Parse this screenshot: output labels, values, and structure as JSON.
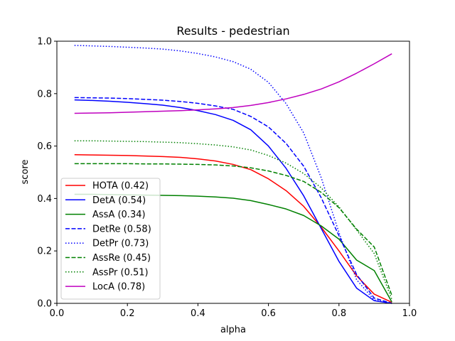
{
  "chart_data": {
    "type": "line",
    "title": "Results - pedestrian",
    "xlabel": "alpha",
    "ylabel": "score",
    "xlim": [
      0.0,
      1.0
    ],
    "ylim": [
      0.0,
      1.0
    ],
    "xticks": [
      "0.0",
      "0.2",
      "0.4",
      "0.6",
      "0.8",
      "1.0"
    ],
    "yticks": [
      "0.0",
      "0.2",
      "0.4",
      "0.6",
      "0.8",
      "1.0"
    ],
    "grid": false,
    "legend_position": "lower-left",
    "x": [
      0.05,
      0.1,
      0.15,
      0.2,
      0.25,
      0.3,
      0.35,
      0.4,
      0.45,
      0.5,
      0.55,
      0.6,
      0.65,
      0.7,
      0.75,
      0.8,
      0.85,
      0.9,
      0.95
    ],
    "series": [
      {
        "name": "HOTA (0.42)",
        "color": "#ff0000",
        "dash": "solid",
        "values": [
          0.567,
          0.566,
          0.565,
          0.564,
          0.562,
          0.56,
          0.557,
          0.551,
          0.543,
          0.53,
          0.51,
          0.475,
          0.43,
          0.37,
          0.29,
          0.2,
          0.105,
          0.035,
          0.004
        ]
      },
      {
        "name": "DetA (0.54)",
        "color": "#0000ff",
        "dash": "solid",
        "values": [
          0.776,
          0.774,
          0.771,
          0.767,
          0.762,
          0.756,
          0.747,
          0.735,
          0.72,
          0.698,
          0.662,
          0.6,
          0.515,
          0.41,
          0.285,
          0.16,
          0.058,
          0.01,
          0.0
        ]
      },
      {
        "name": "AssA (0.34)",
        "color": "#008000",
        "dash": "solid",
        "values": [
          0.416,
          0.416,
          0.415,
          0.414,
          0.413,
          0.412,
          0.411,
          0.409,
          0.406,
          0.401,
          0.392,
          0.377,
          0.36,
          0.335,
          0.295,
          0.245,
          0.165,
          0.125,
          0.005
        ]
      },
      {
        "name": "DetRe (0.58)",
        "color": "#0000ff",
        "dash": "dashed",
        "values": [
          0.785,
          0.784,
          0.783,
          0.781,
          0.778,
          0.775,
          0.77,
          0.763,
          0.753,
          0.74,
          0.713,
          0.673,
          0.61,
          0.523,
          0.402,
          0.258,
          0.11,
          0.02,
          0.0
        ]
      },
      {
        "name": "DetPr (0.73)",
        "color": "#0000ff",
        "dash": "dotted",
        "values": [
          0.984,
          0.982,
          0.98,
          0.977,
          0.974,
          0.97,
          0.963,
          0.953,
          0.94,
          0.922,
          0.893,
          0.843,
          0.762,
          0.65,
          0.478,
          0.27,
          0.09,
          0.013,
          0.0
        ]
      },
      {
        "name": "AssRe (0.45)",
        "color": "#008000",
        "dash": "dashed",
        "values": [
          0.533,
          0.533,
          0.533,
          0.533,
          0.532,
          0.532,
          0.531,
          0.53,
          0.528,
          0.524,
          0.517,
          0.505,
          0.488,
          0.465,
          0.423,
          0.365,
          0.283,
          0.215,
          0.03
        ]
      },
      {
        "name": "AssPr (0.51)",
        "color": "#008000",
        "dash": "dotted",
        "values": [
          0.62,
          0.62,
          0.619,
          0.618,
          0.617,
          0.615,
          0.613,
          0.609,
          0.604,
          0.597,
          0.585,
          0.564,
          0.535,
          0.495,
          0.44,
          0.368,
          0.28,
          0.19,
          0.015
        ]
      },
      {
        "name": "LocA (0.78)",
        "color": "#bf00bf",
        "dash": "solid",
        "values": [
          0.725,
          0.726,
          0.727,
          0.729,
          0.731,
          0.733,
          0.735,
          0.738,
          0.742,
          0.747,
          0.755,
          0.766,
          0.78,
          0.797,
          0.818,
          0.845,
          0.878,
          0.914,
          0.952
        ]
      }
    ]
  }
}
